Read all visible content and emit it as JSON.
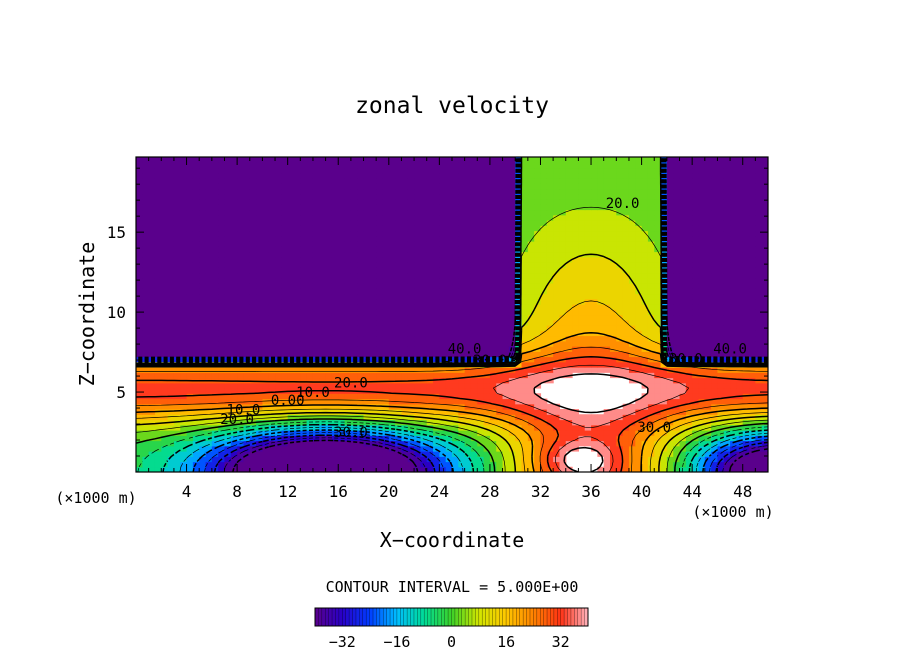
{
  "chart_data": {
    "type": "heatmap",
    "title": "zonal velocity",
    "xlabel": "X−coordinate",
    "ylabel": "Z−coordinate",
    "x_unit_left": "(×1000 m)",
    "x_unit_right": "(×1000 m)",
    "xlim": [
      0,
      50
    ],
    "ylim": [
      0,
      19.7
    ],
    "xticks": [
      4,
      8,
      12,
      16,
      20,
      24,
      28,
      32,
      36,
      40,
      44,
      48
    ],
    "yticks": [
      5,
      10,
      15
    ],
    "contour_interval_text": "CONTOUR INTERVAL = 5.000E+00",
    "contour_interval": 5,
    "contour_labels": [
      {
        "text": "40.0",
        "x": 26,
        "z": 7.4
      },
      {
        "text": "30.0",
        "x": 28,
        "z": 6.7
      },
      {
        "text": "20.0",
        "x": 17,
        "z": 5.3
      },
      {
        "text": "10.0",
        "x": 14,
        "z": 4.7
      },
      {
        "text": "0.00",
        "x": 12,
        "z": 4.2
      },
      {
        "text": "10.0",
        "x": 8.5,
        "z": 3.6
      },
      {
        "text": "20.0",
        "x": 8,
        "z": 3.0
      },
      {
        "text": "30.0",
        "x": 17,
        "z": 2.2
      },
      {
        "text": "20.0",
        "x": 38.5,
        "z": 16.5
      },
      {
        "text": "40.0",
        "x": 47,
        "z": 7.4
      },
      {
        "text": "30.0",
        "x": 43.5,
        "z": 6.8
      },
      {
        "text": "30.0",
        "x": 41,
        "z": 2.5
      }
    ],
    "colorbar": {
      "min": -40,
      "max": 40,
      "tick_values": [
        -32,
        -16,
        0,
        16,
        32
      ],
      "tick_labels": [
        "−32",
        "−16",
        "0",
        "16",
        "32"
      ]
    }
  }
}
